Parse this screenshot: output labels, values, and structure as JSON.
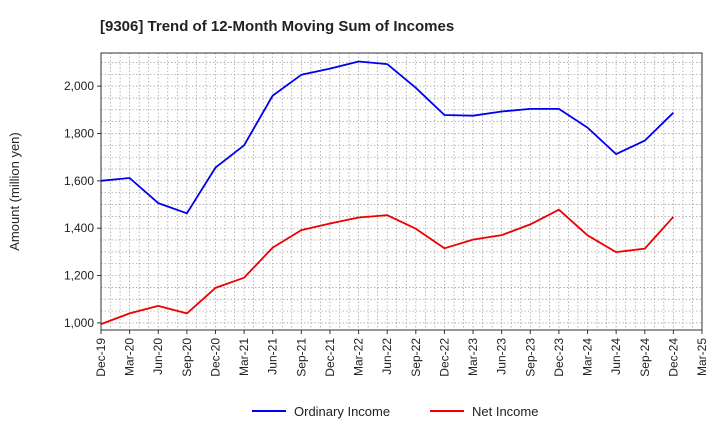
{
  "chart_data": {
    "type": "line",
    "title": "[9306]  Trend of 12-Month Moving Sum of Incomes",
    "ylabel": "Amount (million yen)",
    "xlabel": "",
    "ylim": [
      970,
      2140
    ],
    "yticks": [
      1000,
      1200,
      1400,
      1600,
      1800,
      2000
    ],
    "ytick_labels": [
      "1,000",
      "1,200",
      "1,400",
      "1,600",
      "1,800",
      "2,000"
    ],
    "categories": [
      "Dec-19",
      "Mar-20",
      "Jun-20",
      "Sep-20",
      "Dec-20",
      "Mar-21",
      "Jun-21",
      "Sep-21",
      "Dec-21",
      "Mar-22",
      "Jun-22",
      "Sep-22",
      "Dec-22",
      "Mar-23",
      "Jun-23",
      "Sep-23",
      "Dec-23",
      "Mar-24",
      "Jun-24",
      "Sep-24",
      "Dec-24",
      "Mar-25"
    ],
    "grid": true,
    "legend_position": "bottom-center",
    "series": [
      {
        "name": "Ordinary Income",
        "color": "#0000ee",
        "values": [
          1600,
          1612,
          1506,
          1463,
          1656,
          1750,
          1960,
          2048,
          2074,
          2104,
          2093,
          1993,
          1878,
          1875,
          1893,
          1904,
          1904,
          1825,
          1713,
          1770,
          1888,
          null
        ]
      },
      {
        "name": "Net Income",
        "color": "#ee0000",
        "values": [
          995,
          1040,
          1072,
          1040,
          1148,
          1191,
          1318,
          1392,
          1420,
          1445,
          1455,
          1398,
          1315,
          1352,
          1371,
          1416,
          1478,
          1370,
          1299,
          1314,
          1448,
          null
        ]
      }
    ]
  }
}
